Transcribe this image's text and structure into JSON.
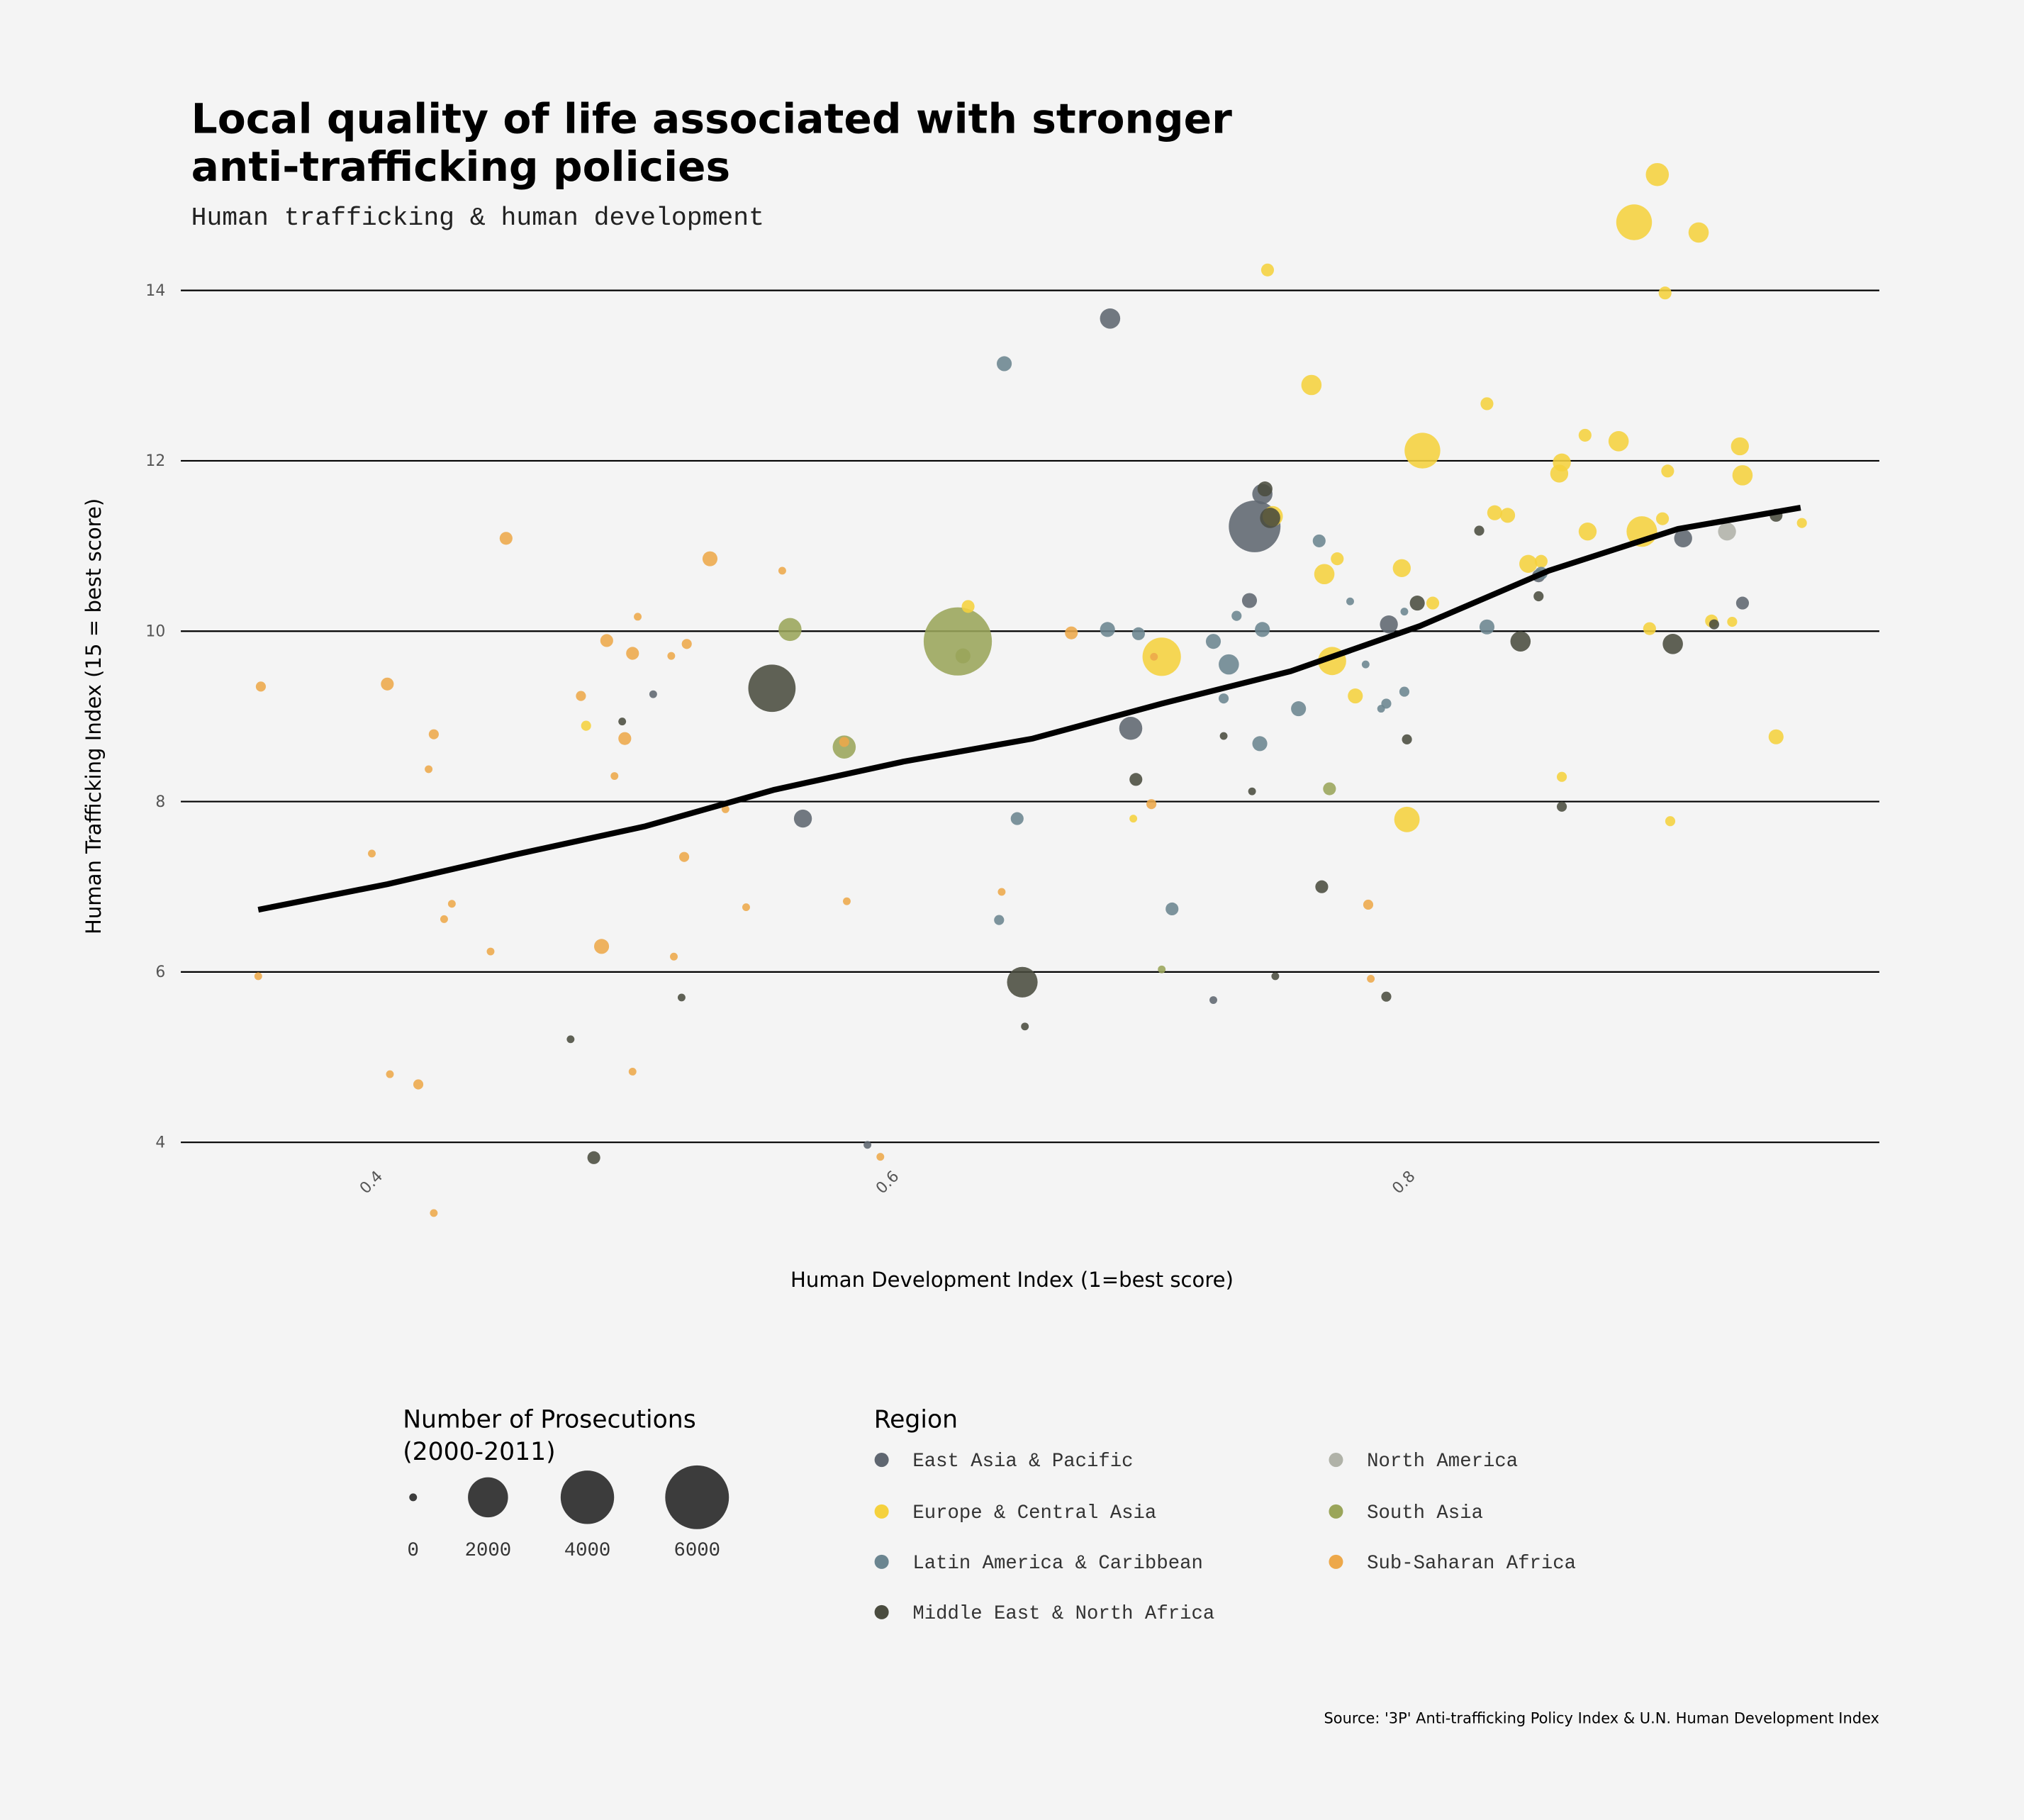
{
  "chart_data": {
    "type": "scatter",
    "title_line1": "Local quality of life associated with stronger",
    "title_line2": "anti-trafficking policies",
    "subtitle": "Human trafficking & human development",
    "xlabel": "Human Development Index (1=best score)",
    "ylabel": "Human Trafficking Index (15 = best score)",
    "source": "Source: '3P' Anti-trafficking Policy Index & U.N. Human Development Index",
    "xlim": [
      0.35,
      0.95
    ],
    "ylim": [
      3,
      15.5
    ],
    "x_ticks": [
      "0.4",
      "0.6",
      "0.8"
    ],
    "x_tick_values": [
      0.4,
      0.6,
      0.8
    ],
    "y_ticks": [
      "4",
      "6",
      "8",
      "10",
      "12",
      "14"
    ],
    "y_tick_values": [
      4,
      6,
      8,
      10,
      12,
      14
    ],
    "grid": "horizontal",
    "size_legend": {
      "title_line1": "Number of Prosecutions",
      "title_line2": "(2000-2011)",
      "labels": [
        "0",
        "2000",
        "4000",
        "6000"
      ],
      "values": [
        0,
        2000,
        4000,
        6000
      ]
    },
    "region_legend": {
      "title": "Region",
      "placement": "bottom"
    },
    "point_format": [
      "hdi",
      "trafficking_index",
      "prosecutions"
    ],
    "series": [
      {
        "name": "East Asia & Pacific",
        "color": "#5f6670",
        "points": [
          [
            0.68,
            13.67,
            300
          ],
          [
            0.736,
            11.23,
            3700
          ],
          [
            0.739,
            11.61,
            300
          ],
          [
            0.734,
            10.36,
            100
          ],
          [
            0.688,
            8.86,
            450
          ],
          [
            0.561,
            7.8,
            200
          ],
          [
            0.902,
            11.09,
            200
          ],
          [
            0.925,
            10.33,
            50
          ],
          [
            0.846,
            10.65,
            50
          ],
          [
            0.788,
            10.08,
            200
          ],
          [
            0.503,
            9.26,
            0
          ],
          [
            0.586,
            3.97,
            0
          ],
          [
            0.72,
            5.67,
            0
          ]
        ]
      },
      {
        "name": "Europe & Central Asia",
        "color": "#f5d13d",
        "points": [
          [
            0.477,
            8.89,
            10
          ],
          [
            0.625,
            10.29,
            50
          ],
          [
            0.741,
            14.24,
            50
          ],
          [
            0.758,
            12.89,
            300
          ],
          [
            0.801,
            12.12,
            1500
          ],
          [
            0.826,
            12.67,
            50
          ],
          [
            0.864,
            12.3,
            50
          ],
          [
            0.877,
            12.23,
            300
          ],
          [
            0.892,
            15.36,
            450
          ],
          [
            0.883,
            14.8,
            1500
          ],
          [
            0.908,
            14.68,
            300
          ],
          [
            0.895,
            13.97,
            50
          ],
          [
            0.855,
            11.98,
            200
          ],
          [
            0.854,
            11.85,
            200
          ],
          [
            0.896,
            11.88,
            50
          ],
          [
            0.924,
            12.17,
            200
          ],
          [
            0.925,
            11.83,
            300
          ],
          [
            0.829,
            11.39,
            100
          ],
          [
            0.834,
            11.36,
            100
          ],
          [
            0.886,
            11.17,
            1000
          ],
          [
            0.894,
            11.32,
            50
          ],
          [
            0.865,
            11.17,
            200
          ],
          [
            0.768,
            10.85,
            50
          ],
          [
            0.763,
            10.67,
            300
          ],
          [
            0.793,
            10.74,
            200
          ],
          [
            0.805,
            10.33,
            50
          ],
          [
            0.842,
            10.79,
            200
          ],
          [
            0.847,
            10.82,
            50
          ],
          [
            0.889,
            10.03,
            50
          ],
          [
            0.913,
            10.12,
            50
          ],
          [
            0.921,
            10.11,
            10
          ],
          [
            0.948,
            11.27,
            10
          ],
          [
            0.938,
            8.76,
            100
          ],
          [
            0.897,
            7.77,
            10
          ],
          [
            0.855,
            8.29,
            10
          ],
          [
            0.795,
            7.79,
            600
          ],
          [
            0.775,
            9.24,
            100
          ],
          [
            0.766,
            9.65,
            800
          ],
          [
            0.7,
            9.7,
            1800
          ],
          [
            0.689,
            7.8,
            0
          ],
          [
            0.743,
            11.35,
            300
          ]
        ]
      },
      {
        "name": "Latin America & Caribbean",
        "color": "#6b8590",
        "points": [
          [
            0.639,
            13.14,
            100
          ],
          [
            0.679,
            10.02,
            100
          ],
          [
            0.691,
            9.97,
            50
          ],
          [
            0.72,
            9.88,
            100
          ],
          [
            0.726,
            9.61,
            300
          ],
          [
            0.729,
            10.18,
            10
          ],
          [
            0.739,
            10.02,
            100
          ],
          [
            0.724,
            9.21,
            10
          ],
          [
            0.738,
            8.68,
            100
          ],
          [
            0.753,
            9.09,
            100
          ],
          [
            0.761,
            11.06,
            50
          ],
          [
            0.773,
            10.35,
            0
          ],
          [
            0.779,
            9.61,
            0
          ],
          [
            0.794,
            10.23,
            0
          ],
          [
            0.794,
            9.29,
            10
          ],
          [
            0.787,
            9.15,
            10
          ],
          [
            0.785,
            9.09,
            0
          ],
          [
            0.826,
            10.05,
            100
          ],
          [
            0.847,
            10.68,
            50
          ],
          [
            0.644,
            7.8,
            50
          ],
          [
            0.637,
            6.61,
            10
          ],
          [
            0.704,
            6.74,
            50
          ]
        ]
      },
      {
        "name": "Middle East & North Africa",
        "color": "#4a4c3f",
        "points": [
          [
            0.549,
            9.33,
            3000
          ],
          [
            0.646,
            5.88,
            1000
          ],
          [
            0.74,
            11.67,
            100
          ],
          [
            0.742,
            11.33,
            300
          ],
          [
            0.799,
            10.33,
            100
          ],
          [
            0.823,
            11.18,
            10
          ],
          [
            0.839,
            9.88,
            300
          ],
          [
            0.846,
            10.41,
            10
          ],
          [
            0.898,
            9.85,
            300
          ],
          [
            0.914,
            10.08,
            10
          ],
          [
            0.938,
            11.36,
            50
          ],
          [
            0.69,
            8.26,
            50
          ],
          [
            0.724,
            8.77,
            0
          ],
          [
            0.735,
            8.12,
            0
          ],
          [
            0.762,
            7.0,
            50
          ],
          [
            0.795,
            8.73,
            10
          ],
          [
            0.855,
            7.94,
            10
          ],
          [
            0.744,
            5.95,
            0
          ],
          [
            0.787,
            5.71,
            10
          ],
          [
            0.647,
            5.36,
            0
          ],
          [
            0.514,
            5.7,
            0
          ],
          [
            0.471,
            5.21,
            0
          ],
          [
            0.48,
            3.82,
            50
          ],
          [
            0.491,
            8.94,
            0
          ]
        ]
      },
      {
        "name": "North America",
        "color": "#b0b2a8",
        "points": [
          [
            0.919,
            11.17,
            200
          ]
        ]
      },
      {
        "name": "South Asia",
        "color": "#9aa55a",
        "points": [
          [
            0.621,
            9.88,
            7000
          ],
          [
            0.556,
            10.02,
            450
          ],
          [
            0.577,
            8.64,
            450
          ],
          [
            0.623,
            9.71,
            100
          ],
          [
            0.765,
            8.15,
            50
          ],
          [
            0.7,
            6.03,
            0
          ]
        ]
      },
      {
        "name": "Sub-Saharan Africa",
        "color": "#eda84a",
        "points": [
          [
            0.351,
            9.35,
            10
          ],
          [
            0.35,
            5.95,
            0
          ],
          [
            0.4,
            9.38,
            50
          ],
          [
            0.394,
            7.39,
            0
          ],
          [
            0.401,
            4.8,
            0
          ],
          [
            0.412,
            4.68,
            10
          ],
          [
            0.418,
            8.79,
            10
          ],
          [
            0.416,
            8.38,
            0
          ],
          [
            0.418,
            3.17,
            0
          ],
          [
            0.425,
            6.8,
            0
          ],
          [
            0.422,
            6.62,
            0
          ],
          [
            0.44,
            6.24,
            0
          ],
          [
            0.446,
            11.09,
            50
          ],
          [
            0.475,
            9.24,
            10
          ],
          [
            0.485,
            9.89,
            50
          ],
          [
            0.483,
            6.3,
            100
          ],
          [
            0.488,
            8.3,
            0
          ],
          [
            0.492,
            8.74,
            50
          ],
          [
            0.495,
            9.74,
            50
          ],
          [
            0.497,
            10.17,
            0
          ],
          [
            0.495,
            4.83,
            0
          ],
          [
            0.51,
            9.71,
            0
          ],
          [
            0.516,
            9.85,
            10
          ],
          [
            0.515,
            7.35,
            10
          ],
          [
            0.511,
            6.18,
            0
          ],
          [
            0.525,
            10.85,
            100
          ],
          [
            0.531,
            7.91,
            0
          ],
          [
            0.539,
            6.76,
            0
          ],
          [
            0.553,
            10.71,
            0
          ],
          [
            0.578,
            6.83,
            0
          ],
          [
            0.591,
            3.83,
            0
          ],
          [
            0.638,
            6.94,
            0
          ],
          [
            0.665,
            9.98,
            50
          ],
          [
            0.696,
            7.97,
            10
          ],
          [
            0.697,
            9.7,
            0
          ],
          [
            0.78,
            6.79,
            10
          ],
          [
            0.781,
            5.92,
            0
          ],
          [
            0.577,
            8.7,
            10
          ]
        ]
      }
    ],
    "trend_line": {
      "color": "#000000",
      "x": [
        0.35,
        0.4,
        0.45,
        0.5,
        0.55,
        0.6,
        0.65,
        0.7,
        0.75,
        0.8,
        0.85,
        0.9,
        0.9475
      ],
      "y": [
        6.73,
        7.03,
        7.38,
        7.71,
        8.14,
        8.47,
        8.74,
        9.15,
        9.53,
        10.06,
        10.71,
        11.2,
        11.45
      ]
    }
  }
}
